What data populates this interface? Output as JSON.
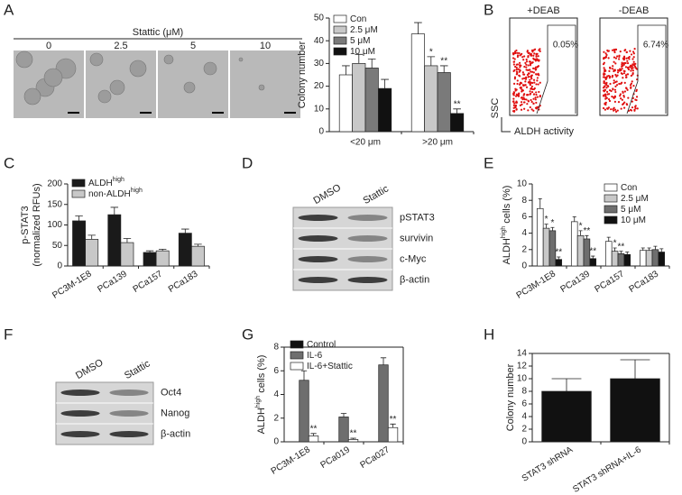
{
  "panels": [
    "A",
    "B",
    "C",
    "D",
    "E",
    "F",
    "G",
    "H"
  ],
  "panel_a": {
    "header": "Stattic (μM)",
    "conditions": [
      "0",
      "2.5",
      "5",
      "10"
    ]
  },
  "panel_b": {
    "plots": [
      {
        "title": "+DEAB",
        "percent": "0.05%"
      },
      {
        "title": "-DEAB",
        "percent": "6.74%"
      }
    ],
    "y_axis": "SSC",
    "x_axis": "ALDH activity"
  },
  "panel_d": {
    "lanes": [
      "DMSO",
      "Stattic"
    ],
    "proteins": [
      "pSTAT3",
      "survivin",
      "c-Myc",
      "β-actin"
    ]
  },
  "panel_f": {
    "lanes": [
      "DMSO",
      "Stattic"
    ],
    "proteins": [
      "Oct4",
      "Nanog",
      "β-actin"
    ]
  },
  "chart_data": [
    {
      "type": "bar",
      "ylabel": [
        [
          {
            "text": "Colony number"
          }
        ]
      ],
      "categories": [
        "<20 μm",
        ">20 μm"
      ],
      "ylim": [
        0,
        50
      ],
      "yticks": [
        0,
        10,
        20,
        30,
        40,
        50
      ],
      "series": [
        {
          "name": "Con",
          "color": "#ffffff",
          "values": [
            25,
            43
          ],
          "errors": [
            4,
            5
          ]
        },
        {
          "name": "2.5 μM",
          "color": "#c8c8c8",
          "values": [
            30,
            29
          ],
          "errors": [
            4,
            4
          ],
          "stars": [
            null,
            "*"
          ]
        },
        {
          "name": "5 μM",
          "color": "#7a7a7a",
          "values": [
            28,
            26
          ],
          "errors": [
            4,
            3
          ],
          "stars": [
            null,
            "**"
          ]
        },
        {
          "name": "10 μM",
          "color": "#111111",
          "values": [
            19,
            8
          ],
          "errors": [
            4,
            2
          ],
          "stars": [
            null,
            "**"
          ]
        }
      ]
    },
    {
      "type": "bar",
      "ylabel": [
        [
          {
            "text": "p-STAT3"
          }
        ],
        [
          {
            "text": "(normalized RFUs)"
          }
        ]
      ],
      "categories": [
        "PC3M-1E8",
        "PCa139",
        "PCa157",
        "PCa183"
      ],
      "ylim": [
        0,
        200
      ],
      "yticks": [
        0,
        50,
        100,
        150,
        200
      ],
      "series": [
        {
          "name": "ALDH",
          "name_sup": "high",
          "color": "#1a1a1a",
          "values": [
            110,
            125,
            33,
            80
          ],
          "errors": [
            12,
            18,
            4,
            10
          ]
        },
        {
          "name": "non-ALDH",
          "name_sup": "high",
          "color": "#c8c8c8",
          "values": [
            65,
            57,
            37,
            48
          ],
          "errors": [
            10,
            10,
            4,
            5
          ]
        }
      ]
    },
    {
      "type": "bar",
      "ylabel": [
        [
          {
            "text": "ALDH"
          },
          {
            "text": "high",
            "sup": true
          },
          {
            "text": " cells (%)"
          }
        ]
      ],
      "categories": [
        "PC3M-1E8",
        "PCa139",
        "PCa157",
        "PCa183"
      ],
      "ylim": [
        0,
        10
      ],
      "yticks": [
        0,
        2,
        4,
        6,
        8,
        10
      ],
      "series": [
        {
          "name": "Con",
          "color": "#ffffff",
          "values": [
            7.0,
            5.4,
            3.0,
            1.9
          ],
          "errors": [
            1.2,
            0.6,
            0.5,
            0.3
          ]
        },
        {
          "name": "2.5 μM",
          "color": "#c8c8c8",
          "values": [
            4.6,
            3.7,
            1.8,
            1.9
          ],
          "errors": [
            0.5,
            0.6,
            0.4,
            0.3
          ],
          "stars": [
            "*",
            "*",
            "*",
            null
          ]
        },
        {
          "name": "5 μM",
          "color": "#6e6e6e",
          "values": [
            4.3,
            3.3,
            1.5,
            2.0
          ],
          "errors": [
            0.4,
            0.4,
            0.3,
            0.4
          ],
          "stars": [
            "*",
            "**",
            "**",
            null
          ]
        },
        {
          "name": "10 μM",
          "color": "#111111",
          "values": [
            0.8,
            0.9,
            1.4,
            1.7
          ],
          "errors": [
            0.3,
            0.3,
            0.3,
            0.4
          ],
          "stars": [
            "**",
            "**",
            null,
            null
          ]
        }
      ]
    },
    {
      "type": "bar",
      "box": true,
      "ylabel": [
        [
          {
            "text": "ALDH"
          },
          {
            "text": "high",
            "sup": true
          },
          {
            "text": " cells (%)"
          }
        ]
      ],
      "categories": [
        "PC3M-1E8",
        "PCa019",
        "PCa027"
      ],
      "ylim": [
        0,
        8
      ],
      "yticks": [
        0,
        2,
        4,
        6,
        8
      ],
      "series": [
        {
          "name": "Control",
          "color": "#111111",
          "values": [
            0,
            0,
            0
          ],
          "errors": [
            0,
            0,
            0
          ]
        },
        {
          "name": "IL-6",
          "color": "#6e6e6e",
          "values": [
            5.2,
            2.1,
            6.5
          ],
          "errors": [
            0.8,
            0.3,
            0.6
          ]
        },
        {
          "name": "IL-6+Stattic",
          "color": "#ffffff",
          "values": [
            0.5,
            0.2,
            1.2
          ],
          "errors": [
            0.2,
            0.1,
            0.3
          ],
          "stars": [
            "**",
            "**",
            "**"
          ]
        }
      ]
    },
    {
      "type": "bar",
      "box": true,
      "ylabel": [
        [
          {
            "text": "Colony number"
          }
        ]
      ],
      "categories": [
        "STAT3 shRNA",
        "STAT3 shRNA+IL-6"
      ],
      "ylim": [
        0,
        14
      ],
      "yticks": [
        0,
        2,
        4,
        6,
        8,
        10,
        12,
        14
      ],
      "series": [
        {
          "color": "#111111",
          "values": [
            8,
            10
          ],
          "errors": [
            2,
            3
          ]
        }
      ]
    }
  ]
}
